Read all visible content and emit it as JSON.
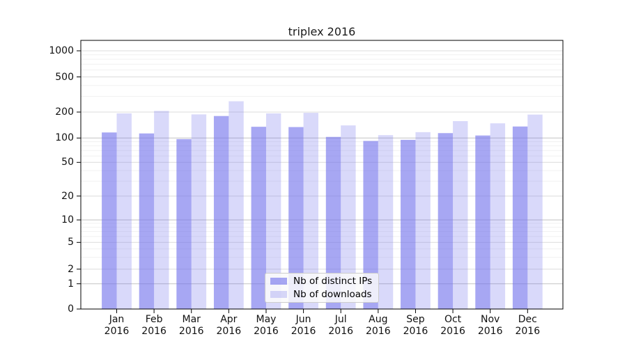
{
  "chart_data": {
    "type": "bar",
    "title": "triplex 2016",
    "categories": [
      "Jan 2016",
      "Feb 2016",
      "Mar 2016",
      "Apr 2016",
      "May 2016",
      "Jun 2016",
      "Jul 2016",
      "Aug 2016",
      "Sep 2016",
      "Oct 2016",
      "Nov 2016",
      "Dec 2016"
    ],
    "series": [
      {
        "name": "Nb of distinct IPs",
        "values": [
          116,
          113,
          97,
          180,
          135,
          134,
          103,
          92,
          95,
          114,
          107,
          136
        ]
      },
      {
        "name": "Nb of downloads",
        "values": [
          193,
          206,
          188,
          265,
          193,
          196,
          140,
          108,
          117,
          157,
          148,
          187
        ]
      }
    ],
    "xlabel": "",
    "ylabel": "",
    "yscale": "symlog",
    "y_ticks": [
      0,
      1,
      2,
      5,
      10,
      20,
      50,
      100,
      200,
      500,
      1000
    ],
    "ylim": [
      0,
      1200
    ],
    "grid": true,
    "legend_position": "lower center"
  },
  "colors": {
    "bar_base": "#7171ec",
    "ips_bar": "rgba(113,113,236,0.62)",
    "downloads_bar": "rgba(113,113,236,0.27)",
    "grid_major": "#c2c2c2",
    "grid_labeled": "#dcdcdc",
    "grid_minor": "#f1f1f1",
    "spine": "#000000"
  }
}
